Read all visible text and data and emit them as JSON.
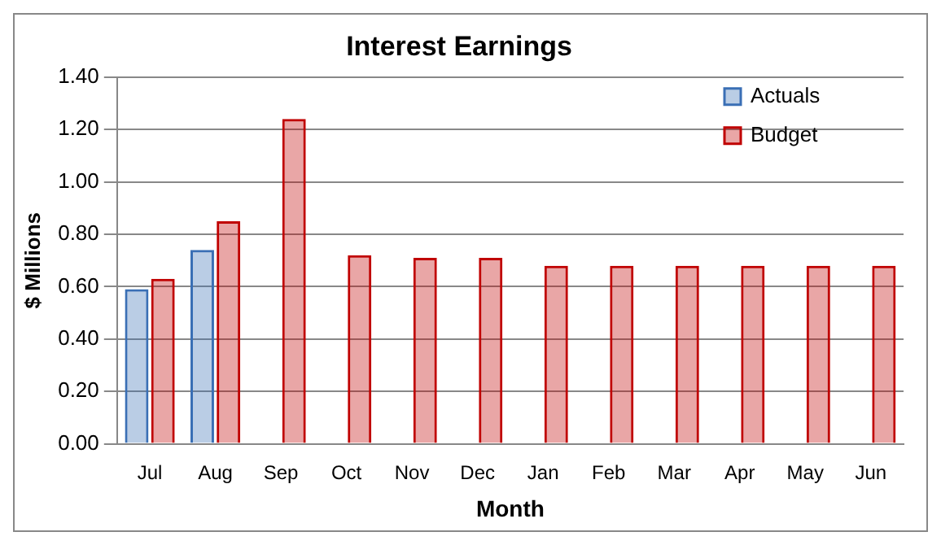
{
  "chart_data": {
    "type": "bar",
    "title": "Interest Earnings",
    "xlabel": "Month",
    "ylabel": "$ Millions",
    "categories": [
      "Jul",
      "Aug",
      "Sep",
      "Oct",
      "Nov",
      "Dec",
      "Jan",
      "Feb",
      "Mar",
      "Apr",
      "May",
      "Jun"
    ],
    "series": [
      {
        "name": "Actuals",
        "color": "#3a6fb5",
        "values": [
          0.59,
          0.74,
          null,
          null,
          null,
          null,
          null,
          null,
          null,
          null,
          null,
          null
        ]
      },
      {
        "name": "Budget",
        "color": "#c00000",
        "values": [
          0.63,
          0.85,
          1.24,
          0.72,
          0.71,
          0.71,
          0.68,
          0.68,
          0.68,
          0.68,
          0.68,
          0.68
        ]
      }
    ],
    "ylim": [
      0,
      1.4
    ],
    "yticks": [
      {
        "value": 0,
        "label": "0.00"
      },
      {
        "value": 0.2,
        "label": "0.20"
      },
      {
        "value": 0.4,
        "label": "0.40"
      },
      {
        "value": 0.6,
        "label": "0.60"
      },
      {
        "value": 0.8,
        "label": "0.80"
      },
      {
        "value": 1,
        "label": "1.00"
      },
      {
        "value": 1.2,
        "label": "1.20"
      },
      {
        "value": 1.4,
        "label": "1.40"
      }
    ],
    "grid": "y",
    "legend": "top right"
  }
}
